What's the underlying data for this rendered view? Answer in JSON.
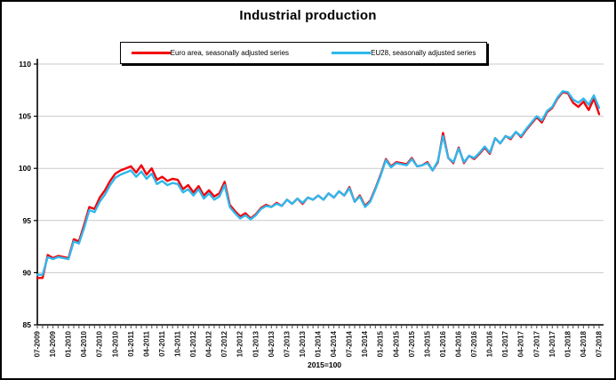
{
  "figure": {
    "background": "#FFFFFF",
    "border_color": "#000000",
    "gridline_color": "#C9C9C9",
    "axis_color": "#000000",
    "tick_color": "#666666"
  },
  "chart_data": {
    "type": "line",
    "title": "Industrial production",
    "note": "2015=100",
    "x_start": "07-2009",
    "x_end": "07-2018",
    "x_frequency": "monthly",
    "xtick_labels": [
      "07-2009",
      "10-2009",
      "01-2010",
      "04-2010",
      "07-2010",
      "10-2010",
      "01-2011",
      "04-2011",
      "07-2011",
      "10-2011",
      "01-2012",
      "04-2012",
      "07-2012",
      "10-2012",
      "01-2013",
      "04-2013",
      "07-2013",
      "10-2013",
      "01-2014",
      "04-2014",
      "07-2014",
      "10-2014",
      "01-2015",
      "04-2015",
      "07-2015",
      "10-2015",
      "01-2016",
      "04-2016",
      "07-2016",
      "10-2016",
      "01-2017",
      "04-2017",
      "07-2017",
      "10-2017",
      "01-2018",
      "04-2018",
      "07-2018"
    ],
    "yticks": [
      85,
      90,
      95,
      100,
      105,
      110
    ],
    "ylim": [
      85,
      110
    ],
    "grid": "horizontal",
    "legend_position": "top-center",
    "series": [
      {
        "name": "Euro area, seasonally adjusted series",
        "color": "#F40009",
        "values": [
          89.5,
          89.5,
          91.7,
          91.4,
          91.6,
          91.5,
          91.4,
          93.2,
          93.0,
          94.6,
          96.3,
          96.1,
          97.2,
          97.9,
          98.8,
          99.5,
          99.8,
          100.0,
          100.2,
          99.6,
          100.3,
          99.4,
          100.0,
          98.9,
          99.2,
          98.8,
          99.0,
          98.9,
          98.0,
          98.4,
          97.7,
          98.3,
          97.4,
          97.9,
          97.3,
          97.6,
          98.7,
          96.5,
          95.9,
          95.4,
          95.7,
          95.2,
          95.6,
          96.2,
          96.5,
          96.3,
          96.7,
          96.4,
          97.0,
          96.6,
          97.1,
          96.6,
          97.2,
          97.0,
          97.4,
          97.0,
          97.6,
          97.2,
          97.8,
          97.4,
          98.2,
          96.8,
          97.4,
          96.4,
          96.9,
          98.1,
          99.4,
          100.9,
          100.2,
          100.6,
          100.5,
          100.4,
          101.0,
          100.2,
          100.3,
          100.6,
          99.8,
          100.6,
          103.4,
          101.0,
          100.5,
          102.0,
          100.5,
          101.2,
          100.9,
          101.4,
          102.0,
          101.4,
          102.9,
          102.4,
          103.1,
          102.8,
          103.5,
          103.0,
          103.7,
          104.3,
          104.9,
          104.4,
          105.4,
          105.8,
          106.7,
          107.3,
          107.2,
          106.3,
          105.9,
          106.4,
          105.6,
          106.7,
          105.2
        ]
      },
      {
        "name": "EU28, seasonally adjusted series",
        "color": "#2FB8EC",
        "values": [
          89.8,
          89.8,
          91.5,
          91.3,
          91.5,
          91.4,
          91.3,
          93.0,
          92.8,
          94.3,
          96.0,
          95.8,
          96.8,
          97.5,
          98.4,
          99.1,
          99.4,
          99.6,
          99.8,
          99.2,
          99.7,
          99.0,
          99.5,
          98.5,
          98.8,
          98.4,
          98.6,
          98.5,
          97.7,
          98.0,
          97.4,
          98.0,
          97.1,
          97.6,
          97.0,
          97.3,
          98.4,
          96.3,
          95.7,
          95.2,
          95.5,
          95.1,
          95.5,
          96.1,
          96.4,
          96.3,
          96.6,
          96.4,
          97.0,
          96.6,
          97.1,
          96.7,
          97.2,
          97.0,
          97.4,
          97.0,
          97.6,
          97.2,
          97.8,
          97.4,
          98.1,
          96.8,
          97.3,
          96.3,
          96.8,
          98.0,
          99.3,
          100.8,
          100.1,
          100.5,
          100.4,
          100.3,
          100.9,
          100.2,
          100.3,
          100.5,
          99.8,
          100.7,
          103.1,
          101.0,
          100.6,
          101.9,
          100.6,
          101.2,
          101.0,
          101.5,
          102.1,
          101.5,
          102.9,
          102.4,
          103.1,
          102.9,
          103.5,
          103.1,
          103.8,
          104.4,
          105.0,
          104.6,
          105.5,
          105.9,
          106.8,
          107.4,
          107.3,
          106.6,
          106.3,
          106.7,
          106.1,
          107.0,
          105.8
        ]
      }
    ]
  }
}
